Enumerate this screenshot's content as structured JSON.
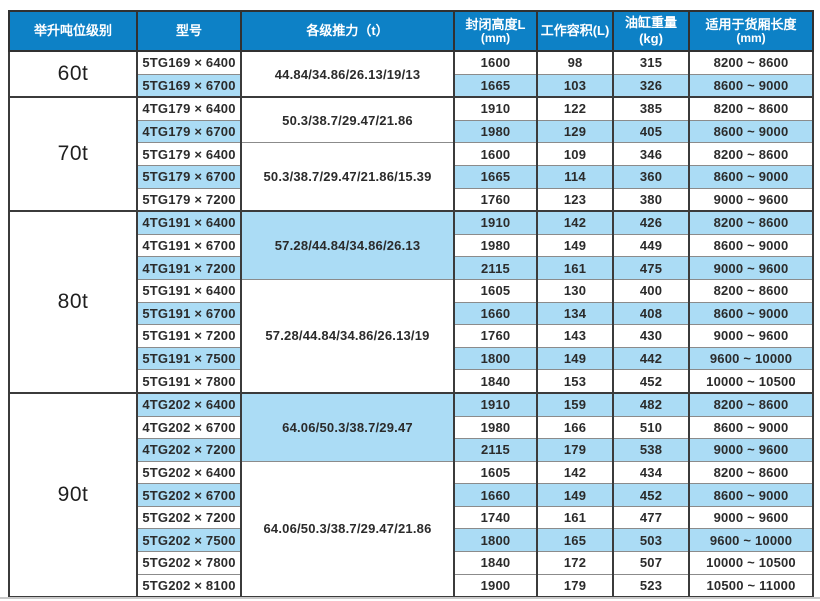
{
  "colors": {
    "header_bg": "#0d81c6",
    "header_text": "#ffffff",
    "row_shade_blue": "#abdcf5",
    "border_dark": "#3b3b3b",
    "row_line_gray": "#8b8b8b",
    "text": "#2b2b2b"
  },
  "table": {
    "columns": [
      {
        "key": "tonnage",
        "label": "举升吨位级别"
      },
      {
        "key": "model",
        "label": "型号"
      },
      {
        "key": "thrust",
        "label": "各级推力（t）"
      },
      {
        "key": "closed_height",
        "label": "封闭高度L",
        "sub": "(mm)"
      },
      {
        "key": "working_volume",
        "label": "工作容积(L)"
      },
      {
        "key": "cylinder_weight",
        "label": "油缸重量(kg)"
      },
      {
        "key": "cargo_length",
        "label": "适用于货厢长度",
        "sub": "(mm)"
      }
    ],
    "sections": [
      {
        "tonnage": "60t",
        "thrust_groups": [
          {
            "value": "44.84/34.86/26.13/19/13",
            "rows": 2,
            "shaded": false
          }
        ],
        "rows": [
          {
            "model": "5TG169 × 6400",
            "closed_height": "1600",
            "working_volume": "98",
            "cylinder_weight": "315",
            "cargo_length": "8200 ~ 8600",
            "shaded": false
          },
          {
            "model": "5TG169 × 6700",
            "closed_height": "1665",
            "working_volume": "103",
            "cylinder_weight": "326",
            "cargo_length": "8600 ~ 9000",
            "shaded": true
          }
        ]
      },
      {
        "tonnage": "70t",
        "thrust_groups": [
          {
            "value": "50.3/38.7/29.47/21.86",
            "rows": 2,
            "shaded": false
          },
          {
            "value": "50.3/38.7/29.47/21.86/15.39",
            "rows": 3,
            "shaded": false
          }
        ],
        "rows": [
          {
            "model": "4TG179 × 6400",
            "closed_height": "1910",
            "working_volume": "122",
            "cylinder_weight": "385",
            "cargo_length": "8200 ~ 8600",
            "shaded": false
          },
          {
            "model": "4TG179 × 6700",
            "closed_height": "1980",
            "working_volume": "129",
            "cylinder_weight": "405",
            "cargo_length": "8600 ~ 9000",
            "shaded": true
          },
          {
            "model": "5TG179 × 6400",
            "closed_height": "1600",
            "working_volume": "109",
            "cylinder_weight": "346",
            "cargo_length": "8200 ~ 8600",
            "shaded": false
          },
          {
            "model": "5TG179 × 6700",
            "closed_height": "1665",
            "working_volume": "114",
            "cylinder_weight": "360",
            "cargo_length": "8600 ~ 9000",
            "shaded": true
          },
          {
            "model": "5TG179 × 7200",
            "closed_height": "1760",
            "working_volume": "123",
            "cylinder_weight": "380",
            "cargo_length": "9000 ~ 9600",
            "shaded": false
          }
        ]
      },
      {
        "tonnage": "80t",
        "thrust_groups": [
          {
            "value": "57.28/44.84/34.86/26.13",
            "rows": 3,
            "shaded": true
          },
          {
            "value": "57.28/44.84/34.86/26.13/19",
            "rows": 5,
            "shaded": false
          }
        ],
        "rows": [
          {
            "model": "4TG191 × 6400",
            "closed_height": "1910",
            "working_volume": "142",
            "cylinder_weight": "426",
            "cargo_length": "8200 ~ 8600",
            "shaded": true
          },
          {
            "model": "4TG191 × 6700",
            "closed_height": "1980",
            "working_volume": "149",
            "cylinder_weight": "449",
            "cargo_length": "8600 ~ 9000",
            "shaded": false
          },
          {
            "model": "4TG191 × 7200",
            "closed_height": "2115",
            "working_volume": "161",
            "cylinder_weight": "475",
            "cargo_length": "9000 ~ 9600",
            "shaded": true
          },
          {
            "model": "5TG191 × 6400",
            "closed_height": "1605",
            "working_volume": "130",
            "cylinder_weight": "400",
            "cargo_length": "8200 ~ 8600",
            "shaded": false
          },
          {
            "model": "5TG191 × 6700",
            "closed_height": "1660",
            "working_volume": "134",
            "cylinder_weight": "408",
            "cargo_length": "8600 ~ 9000",
            "shaded": true
          },
          {
            "model": "5TG191 × 7200",
            "closed_height": "1760",
            "working_volume": "143",
            "cylinder_weight": "430",
            "cargo_length": "9000 ~ 9600",
            "shaded": false
          },
          {
            "model": "5TG191 × 7500",
            "closed_height": "1800",
            "working_volume": "149",
            "cylinder_weight": "442",
            "cargo_length": "9600 ~ 10000",
            "shaded": true
          },
          {
            "model": "5TG191 × 7800",
            "closed_height": "1840",
            "working_volume": "153",
            "cylinder_weight": "452",
            "cargo_length": "10000 ~ 10500",
            "shaded": false
          }
        ]
      },
      {
        "tonnage": "90t",
        "thrust_groups": [
          {
            "value": "64.06/50.3/38.7/29.47",
            "rows": 3,
            "shaded": true
          },
          {
            "value": "64.06/50.3/38.7/29.47/21.86",
            "rows": 6,
            "shaded": false
          }
        ],
        "rows": [
          {
            "model": "4TG202 × 6400",
            "closed_height": "1910",
            "working_volume": "159",
            "cylinder_weight": "482",
            "cargo_length": "8200 ~ 8600",
            "shaded": true
          },
          {
            "model": "4TG202 × 6700",
            "closed_height": "1980",
            "working_volume": "166",
            "cylinder_weight": "510",
            "cargo_length": "8600 ~ 9000",
            "shaded": false
          },
          {
            "model": "4TG202 × 7200",
            "closed_height": "2115",
            "working_volume": "179",
            "cylinder_weight": "538",
            "cargo_length": "9000 ~ 9600",
            "shaded": true
          },
          {
            "model": "5TG202 × 6400",
            "closed_height": "1605",
            "working_volume": "142",
            "cylinder_weight": "434",
            "cargo_length": "8200 ~ 8600",
            "shaded": false
          },
          {
            "model": "5TG202 × 6700",
            "closed_height": "1660",
            "working_volume": "149",
            "cylinder_weight": "452",
            "cargo_length": "8600 ~ 9000",
            "shaded": true
          },
          {
            "model": "5TG202 × 7200",
            "closed_height": "1740",
            "working_volume": "161",
            "cylinder_weight": "477",
            "cargo_length": "9000 ~ 9600",
            "shaded": false
          },
          {
            "model": "5TG202 × 7500",
            "closed_height": "1800",
            "working_volume": "165",
            "cylinder_weight": "503",
            "cargo_length": "9600 ~ 10000",
            "shaded": true
          },
          {
            "model": "5TG202 × 7800",
            "closed_height": "1840",
            "working_volume": "172",
            "cylinder_weight": "507",
            "cargo_length": "10000 ~ 10500",
            "shaded": false
          },
          {
            "model": "5TG202 × 8100",
            "closed_height": "1900",
            "working_volume": "179",
            "cylinder_weight": "523",
            "cargo_length": "10500 ~ 11000",
            "shaded": false
          }
        ]
      }
    ]
  }
}
